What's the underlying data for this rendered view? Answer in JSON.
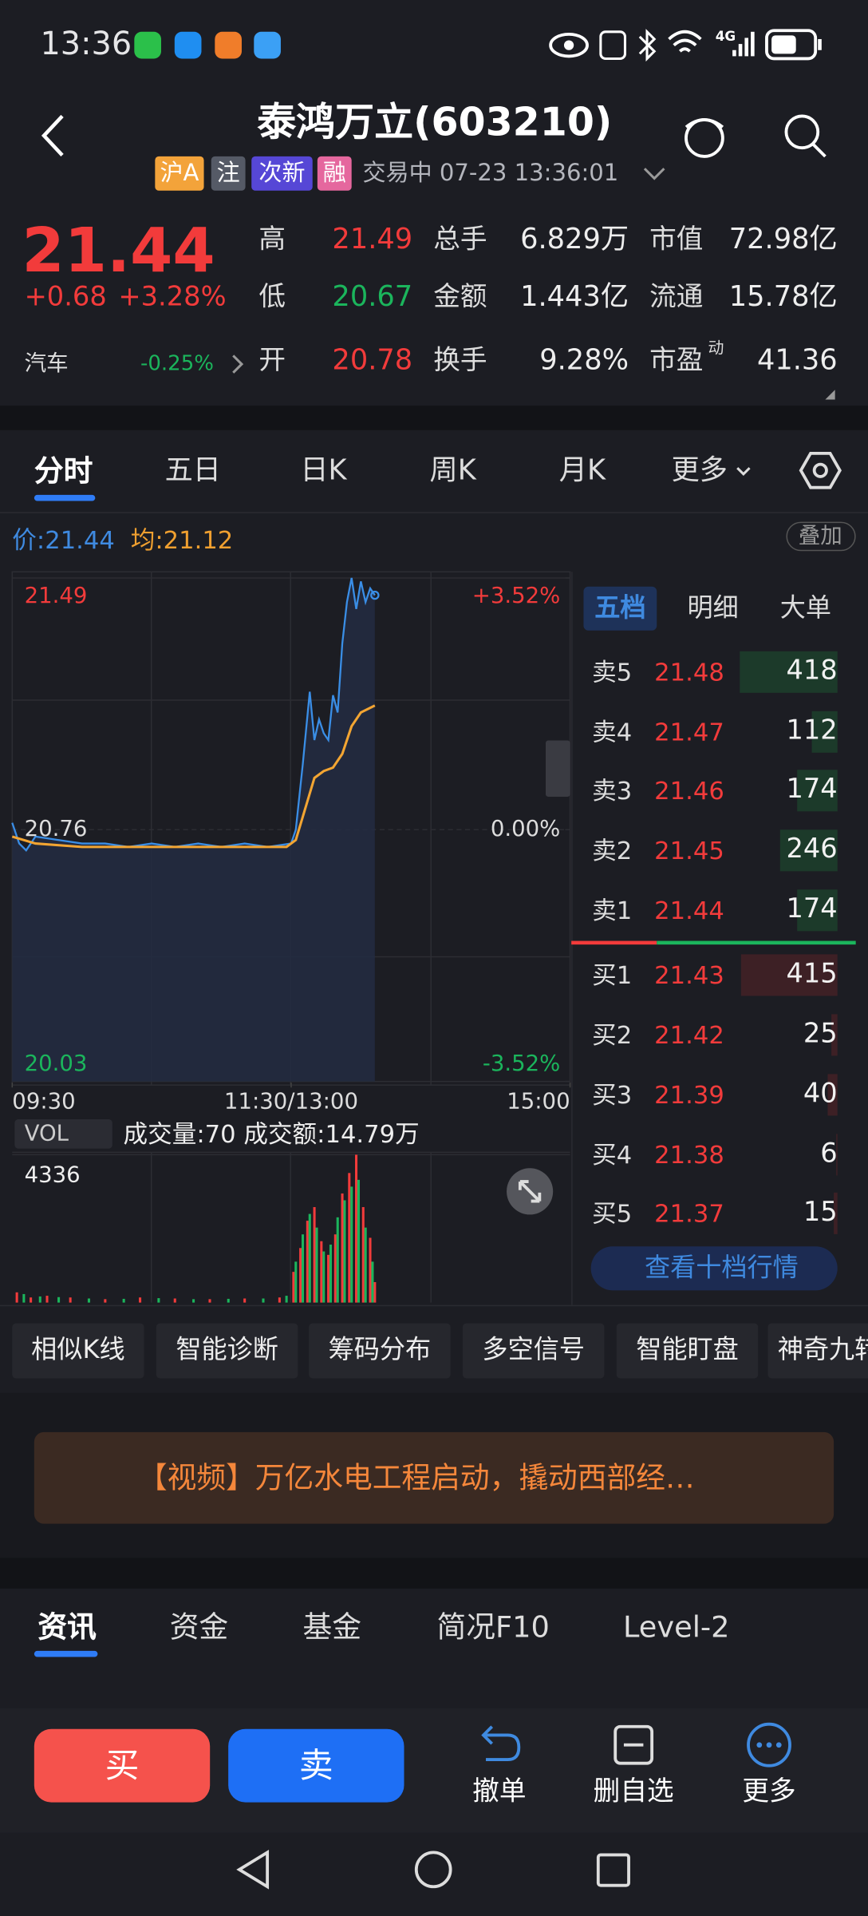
{
  "status_bar": {
    "time": "13:36",
    "network": "4G"
  },
  "header": {
    "title": "泰鸿万立(603210)",
    "tags": [
      "沪A",
      "注",
      "次新",
      "融"
    ],
    "status": "交易中 07-23 13:36:01"
  },
  "quote": {
    "price": "21.44",
    "change": "+0.68",
    "change_pct": "+3.28%",
    "sector": "汽车",
    "sector_change": "-0.25%",
    "stats": [
      [
        {
          "label": "高",
          "value": "21.49",
          "color": "#f23b3b"
        },
        {
          "label": "总手",
          "value": "6.829万",
          "color": "#eeeeee"
        },
        {
          "label": "市值",
          "value": "72.98亿",
          "color": "#eeeeee"
        }
      ],
      [
        {
          "label": "低",
          "value": "20.67",
          "color": "#1bb55c"
        },
        {
          "label": "金额",
          "value": "1.443亿",
          "color": "#eeeeee"
        },
        {
          "label": "流通",
          "value": "15.78亿",
          "color": "#eeeeee"
        }
      ],
      [
        {
          "label": "开",
          "value": "20.78",
          "color": "#f23b3b"
        },
        {
          "label": "换手",
          "value": "9.28%",
          "color": "#eeeeee"
        },
        {
          "label": "市盈",
          "sup": "动",
          "value": "41.36",
          "color": "#eeeeee"
        }
      ]
    ]
  },
  "tabs": [
    "分时",
    "五日",
    "日K",
    "周K",
    "月K",
    "更多"
  ],
  "price_line": {
    "price": "价:21.44",
    "avg": "均:21.12",
    "overlay": "叠加"
  },
  "intraday": {
    "xlim": [
      0,
      240
    ],
    "ylim": [
      20.03,
      21.49
    ],
    "xticks": [
      {
        "value": 0,
        "label": "09:30"
      },
      {
        "value": 120,
        "label": "11:30/13:00"
      },
      {
        "value": 240,
        "label": "15:00"
      }
    ],
    "yticks": [
      21.49,
      20.76,
      20.03
    ],
    "y2ticks": [
      {
        "value": 21.49,
        "label": "+3.52%"
      },
      {
        "value": 20.76,
        "label": "0.00%"
      },
      {
        "value": 20.03,
        "label": "-3.52%"
      }
    ],
    "series": [
      {
        "color": "#3a8ee6",
        "x": [
          0,
          3,
          6,
          10,
          20,
          30,
          40,
          50,
          60,
          70,
          80,
          90,
          100,
          110,
          120,
          122,
          125,
          128,
          130,
          132,
          134,
          136,
          138,
          140,
          142,
          144,
          146,
          148,
          150,
          152,
          154,
          156
        ],
        "values": [
          20.78,
          20.72,
          20.7,
          20.74,
          20.73,
          20.72,
          20.72,
          20.71,
          20.72,
          20.71,
          20.72,
          20.71,
          20.72,
          20.71,
          20.72,
          20.76,
          20.95,
          21.16,
          21.02,
          21.08,
          21.04,
          21.02,
          21.15,
          21.1,
          21.3,
          21.42,
          21.49,
          21.4,
          21.48,
          21.42,
          21.46,
          21.44
        ]
      },
      {
        "color": "#f3a532",
        "x": [
          0,
          10,
          30,
          60,
          90,
          118,
          122,
          126,
          130,
          134,
          138,
          142,
          146,
          150,
          156
        ],
        "values": [
          20.74,
          20.72,
          20.71,
          20.71,
          20.71,
          20.71,
          20.73,
          20.82,
          20.91,
          20.93,
          20.94,
          20.98,
          21.06,
          21.1,
          21.12
        ]
      }
    ]
  },
  "volume": {
    "label": "VOL",
    "info": "成交量:70 成交额:14.79万",
    "ylim": [
      0,
      4336
    ],
    "yticks": [
      4336
    ],
    "series": [
      {
        "color": "#f23b3b",
        "x": [
          2,
          8,
          15,
          25,
          40,
          55,
          70,
          85,
          100,
          115,
          121,
          124,
          127,
          130,
          133,
          136,
          139,
          142,
          145,
          148,
          151,
          154,
          156
        ],
        "values": [
          300,
          150,
          200,
          150,
          100,
          150,
          120,
          100,
          120,
          150,
          900,
          1600,
          2400,
          2800,
          1800,
          1400,
          2000,
          3200,
          3800,
          4336,
          2800,
          1900,
          600
        ]
      },
      {
        "color": "#1bb55c",
        "x": [
          5,
          12,
          20,
          33,
          48,
          63,
          78,
          93,
          108,
          118,
          122,
          125,
          128,
          131,
          134,
          137,
          140,
          143,
          146,
          149,
          152,
          155
        ],
        "values": [
          250,
          180,
          160,
          120,
          110,
          130,
          100,
          110,
          120,
          200,
          1200,
          2000,
          2600,
          2200,
          1500,
          1700,
          2500,
          3000,
          3400,
          3600,
          2200,
          1200
        ]
      }
    ]
  },
  "order_book": {
    "tabs": [
      "五档",
      "明细",
      "大单"
    ],
    "sell": [
      {
        "label": "卖5",
        "price": "21.48",
        "qty": 418
      },
      {
        "label": "卖4",
        "price": "21.47",
        "qty": 112
      },
      {
        "label": "卖3",
        "price": "21.46",
        "qty": 174
      },
      {
        "label": "卖2",
        "price": "21.45",
        "qty": 246
      },
      {
        "label": "卖1",
        "price": "21.44",
        "qty": 174
      }
    ],
    "buy": [
      {
        "label": "买1",
        "price": "21.43",
        "qty": 415
      },
      {
        "label": "买2",
        "price": "21.42",
        "qty": 25
      },
      {
        "label": "买3",
        "price": "21.39",
        "qty": 40
      },
      {
        "label": "买4",
        "price": "21.38",
        "qty": 6
      },
      {
        "label": "买5",
        "price": "21.37",
        "qty": 15
      }
    ],
    "more": "查看十档行情"
  },
  "tools": [
    "相似K线",
    "智能诊断",
    "筹码分布",
    "多空信号",
    "智能盯盘",
    "神奇九转"
  ],
  "news": "【视频】万亿水电工程启动，撬动西部经…",
  "bottom_tabs": [
    "资讯",
    "资金",
    "基金",
    "简况F10",
    "Level-2"
  ],
  "actions": {
    "buy": "买",
    "sell": "卖",
    "items": [
      "撤单",
      "删自选",
      "更多"
    ]
  }
}
